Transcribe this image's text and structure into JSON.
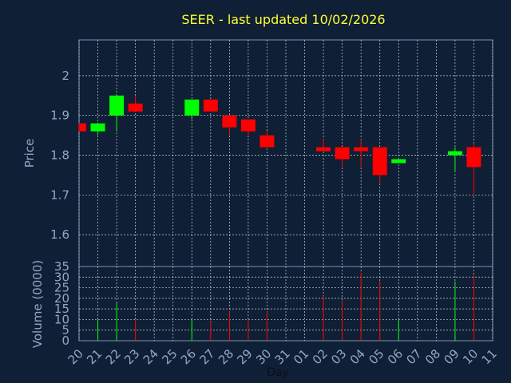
{
  "chart_data": {
    "type": "candlestick",
    "title": "SEER - last updated 10/02/2026",
    "xlabel": "Day",
    "price_panel": {
      "ylabel": "Price",
      "ylim": [
        1.52,
        2.09
      ],
      "yticks": [
        1.6,
        1.7,
        1.8,
        1.9,
        2.0
      ],
      "ytick_labels": [
        "1.6",
        "1.7",
        "1.8",
        "1.9",
        "2"
      ],
      "grid": true
    },
    "volume_panel": {
      "ylabel": "Volume (0000)",
      "ylim": [
        0,
        35
      ],
      "yticks": [
        0,
        5,
        10,
        15,
        20,
        25,
        30,
        35
      ],
      "ytick_labels": [
        "0",
        "5",
        "10",
        "15",
        "20",
        "25",
        "30",
        "35"
      ],
      "grid": true
    },
    "x_ticks": [
      "20",
      "21",
      "22",
      "23",
      "24",
      "25",
      "26",
      "27",
      "28",
      "29",
      "30",
      "31",
      "01",
      "02",
      "03",
      "04",
      "05",
      "06",
      "07",
      "08",
      "09",
      "10",
      "11"
    ],
    "candles": [
      {
        "day": "20",
        "open": 1.88,
        "high": 1.88,
        "low": 1.86,
        "close": 1.86,
        "volume": 0
      },
      {
        "day": "21",
        "open": 1.86,
        "high": 1.88,
        "low": 1.85,
        "close": 1.88,
        "volume": 10
      },
      {
        "day": "22",
        "open": 1.9,
        "high": 1.95,
        "low": 1.86,
        "close": 1.95,
        "volume": 18
      },
      {
        "day": "23",
        "open": 1.93,
        "high": 1.95,
        "low": 1.91,
        "close": 1.91,
        "volume": 10
      },
      {
        "day": "26",
        "open": 1.9,
        "high": 1.94,
        "low": 1.89,
        "close": 1.94,
        "volume": 10
      },
      {
        "day": "27",
        "open": 1.94,
        "high": 1.94,
        "low": 1.91,
        "close": 1.91,
        "volume": 9
      },
      {
        "day": "28",
        "open": 1.9,
        "high": 1.9,
        "low": 1.85,
        "close": 1.87,
        "volume": 14
      },
      {
        "day": "29",
        "open": 1.89,
        "high": 1.89,
        "low": 1.85,
        "close": 1.86,
        "volume": 10
      },
      {
        "day": "30",
        "open": 1.85,
        "high": 1.86,
        "low": 1.82,
        "close": 1.82,
        "volume": 14
      },
      {
        "day": "02",
        "open": 1.82,
        "high": 1.84,
        "low": 1.81,
        "close": 1.81,
        "volume": 21
      },
      {
        "day": "03",
        "open": 1.82,
        "high": 1.82,
        "low": 1.77,
        "close": 1.79,
        "volume": 19
      },
      {
        "day": "04",
        "open": 1.82,
        "high": 1.84,
        "low": 1.77,
        "close": 1.81,
        "volume": 32
      },
      {
        "day": "05",
        "open": 1.82,
        "high": 1.82,
        "low": 1.73,
        "close": 1.75,
        "volume": 28
      },
      {
        "day": "06",
        "open": 1.78,
        "high": 1.79,
        "low": 1.78,
        "close": 1.79,
        "volume": 10
      },
      {
        "day": "09",
        "open": 1.8,
        "high": 1.82,
        "low": 1.76,
        "close": 1.81,
        "volume": 28
      },
      {
        "day": "10",
        "open": 1.82,
        "high": 1.83,
        "low": 1.7,
        "close": 1.77,
        "volume": 31
      }
    ],
    "colors": {
      "background": "#0f1f35",
      "plot_border": "#7d95b8",
      "grid": "#c8d2e0",
      "up": "#00ff00",
      "down": "#ff0000",
      "title": "#ffff33",
      "axis_text": "#8fa8c8"
    }
  }
}
